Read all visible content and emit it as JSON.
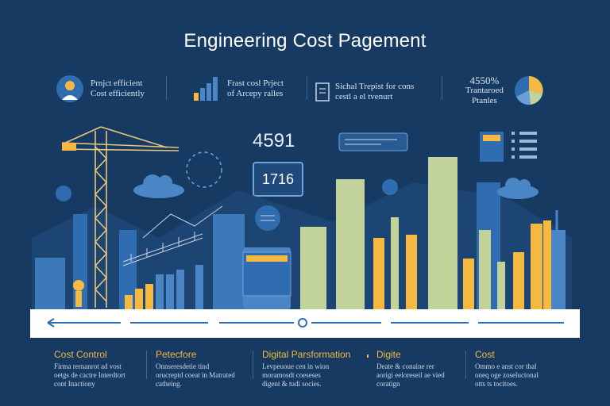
{
  "title": "Engineering Cost Pagement",
  "kpis": [
    {
      "line1": "Prnjct efficient",
      "line2": "Cost efficiently",
      "icon": "person-idea-icon"
    },
    {
      "line1": "Frast cosl Prject",
      "line2": "of Arcepy ralles",
      "icon": "bar-chart-icon"
    },
    {
      "line1": "Sichal Trepist for cons",
      "line2": "cestl a el tvenurt",
      "icon": "document-icon"
    },
    {
      "line1": "4550%",
      "line2": "Trantaroed",
      "line3": "Ptanles",
      "icon": "pie-chart-icon"
    }
  ],
  "numbers": {
    "big": "4591",
    "box": "1716"
  },
  "bottom": [
    {
      "title": "Cost Control",
      "body": [
        "Firma rernanrot ad vost",
        "oetgs de cactre Interdtort",
        "cont Inactiony"
      ]
    },
    {
      "title": "Petecfore",
      "body": [
        "Onnseresdetie tind",
        "orucreptd coeat in Matrated",
        "catheing."
      ]
    },
    {
      "title": "Digital Parsformation",
      "body": [
        "Levpeuoue cen in wion",
        "moramosdt coeseses",
        "digent & tudi socies."
      ]
    },
    {
      "title": "Digite",
      "body": [
        "Deate & conaine rer",
        "aorigi eeloreseil ae vied",
        "coratign"
      ]
    },
    {
      "title": "Cost",
      "body": [
        "Ommo e anst cor thal",
        "oneq oge zoseluctonal",
        "otts ts tocitoes."
      ]
    }
  ],
  "colors": {
    "background": "#173a63",
    "accent": "#f5b840",
    "sage": "#c1d39b",
    "blue": "#4a86c5"
  },
  "bar_chart": {
    "type": "bar",
    "values": [
      0.09,
      0.13,
      0.16,
      0.22,
      0.22,
      0.25,
      0.28,
      0.52,
      0.82,
      0.45,
      0.58,
      0.47,
      0.96,
      0.32,
      0.5,
      0.3,
      0.36,
      0.54,
      0.56
    ],
    "colors": [
      "#f5b840",
      "#f5b840",
      "#f5b840",
      "#4a86c5",
      "#4a86c5",
      "#4a86c5",
      "#4a86c5",
      "#c1d39b",
      "#c1d39b",
      "#f5b840",
      "#c1d39b",
      "#f5b840",
      "#c1d39b",
      "#f5b840",
      "#c1d39b",
      "#c1d39b",
      "#f5b840",
      "#f5b840",
      "#f5b840"
    ]
  }
}
